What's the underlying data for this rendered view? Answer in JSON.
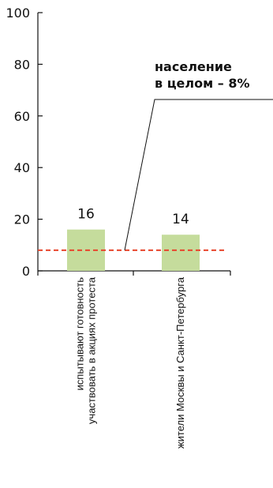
{
  "chart_data": {
    "type": "bar",
    "title": "",
    "xlabel": "",
    "ylabel": "",
    "ylim": [
      0,
      100
    ],
    "yticks": [
      0,
      20,
      40,
      60,
      80,
      100
    ],
    "y_tick_labels": [
      "0",
      "20",
      "40",
      "60",
      "80",
      "100"
    ],
    "grid": false,
    "categories": [
      [
        "испытывают готовность",
        "участвовать  в акциях протеста"
      ],
      [
        "жители Москвы и Санкт-Петербурга"
      ]
    ],
    "values": [
      16,
      14
    ],
    "data_labels": [
      "16",
      "14"
    ],
    "bar_color": "#c5dc9c",
    "reference_line": {
      "value": 8,
      "color": "#e8452c",
      "style": "dashed",
      "annotation": [
        "население",
        "в целом – 8%"
      ]
    }
  }
}
